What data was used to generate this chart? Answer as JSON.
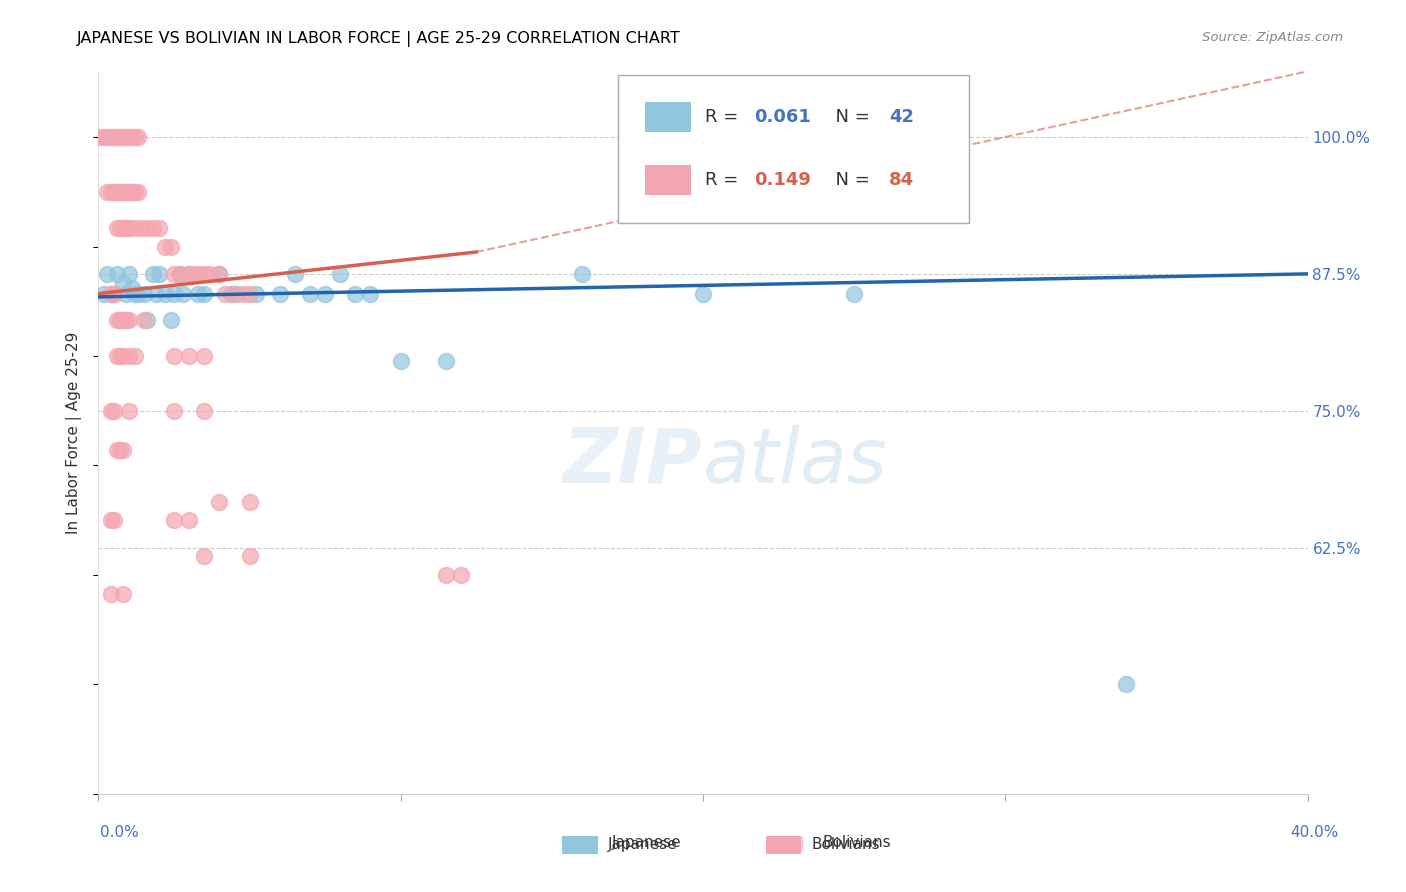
{
  "title": "JAPANESE VS BOLIVIAN IN LABOR FORCE | AGE 25-29 CORRELATION CHART",
  "source": "Source: ZipAtlas.com",
  "ylabel": "In Labor Force | Age 25-29",
  "ytick_labels": [
    "100.0%",
    "87.5%",
    "75.0%",
    "62.5%"
  ],
  "ytick_values": [
    1.0,
    0.875,
    0.75,
    0.625
  ],
  "xlim": [
    0.0,
    0.4
  ],
  "ylim": [
    0.4,
    1.06
  ],
  "japanese_color": "#92C5DE",
  "bolivian_color": "#F4A6B0",
  "japanese_trend_color": "#2166AC",
  "bolivian_trend_color": "#D6604D",
  "japanese_trend": [
    0.0,
    0.854,
    0.4,
    0.875
  ],
  "bolivian_trend_solid": [
    0.0,
    0.857,
    0.125,
    0.895
  ],
  "bolivian_trend_dashed": [
    0.125,
    0.895,
    0.4,
    1.06
  ],
  "japanese_points": [
    [
      0.002,
      0.857
    ],
    [
      0.003,
      0.875
    ],
    [
      0.004,
      0.857
    ],
    [
      0.005,
      0.857
    ],
    [
      0.006,
      0.875
    ],
    [
      0.007,
      0.833
    ],
    [
      0.008,
      0.867
    ],
    [
      0.009,
      0.857
    ],
    [
      0.01,
      0.875
    ],
    [
      0.011,
      0.862
    ],
    [
      0.012,
      0.857
    ],
    [
      0.013,
      0.857
    ],
    [
      0.015,
      0.857
    ],
    [
      0.016,
      0.833
    ],
    [
      0.018,
      0.875
    ],
    [
      0.019,
      0.857
    ],
    [
      0.02,
      0.875
    ],
    [
      0.022,
      0.857
    ],
    [
      0.024,
      0.833
    ],
    [
      0.025,
      0.857
    ],
    [
      0.027,
      0.875
    ],
    [
      0.028,
      0.857
    ],
    [
      0.03,
      0.875
    ],
    [
      0.033,
      0.857
    ],
    [
      0.035,
      0.857
    ],
    [
      0.04,
      0.875
    ],
    [
      0.044,
      0.857
    ],
    [
      0.046,
      0.857
    ],
    [
      0.052,
      0.857
    ],
    [
      0.06,
      0.857
    ],
    [
      0.065,
      0.875
    ],
    [
      0.07,
      0.857
    ],
    [
      0.075,
      0.857
    ],
    [
      0.08,
      0.875
    ],
    [
      0.085,
      0.857
    ],
    [
      0.09,
      0.857
    ],
    [
      0.1,
      0.795
    ],
    [
      0.115,
      0.795
    ],
    [
      0.16,
      0.875
    ],
    [
      0.2,
      0.857
    ],
    [
      0.25,
      0.857
    ],
    [
      0.34,
      0.5
    ]
  ],
  "bolivian_points": [
    [
      0.001,
      1.0
    ],
    [
      0.002,
      1.0
    ],
    [
      0.003,
      1.0
    ],
    [
      0.004,
      1.0
    ],
    [
      0.005,
      1.0
    ],
    [
      0.006,
      1.0
    ],
    [
      0.007,
      1.0
    ],
    [
      0.008,
      1.0
    ],
    [
      0.009,
      1.0
    ],
    [
      0.01,
      1.0
    ],
    [
      0.011,
      1.0
    ],
    [
      0.012,
      1.0
    ],
    [
      0.013,
      1.0
    ],
    [
      0.003,
      0.95
    ],
    [
      0.004,
      0.95
    ],
    [
      0.005,
      0.95
    ],
    [
      0.006,
      0.95
    ],
    [
      0.007,
      0.95
    ],
    [
      0.008,
      0.95
    ],
    [
      0.009,
      0.95
    ],
    [
      0.01,
      0.95
    ],
    [
      0.011,
      0.95
    ],
    [
      0.012,
      0.95
    ],
    [
      0.013,
      0.95
    ],
    [
      0.006,
      0.917
    ],
    [
      0.007,
      0.917
    ],
    [
      0.008,
      0.917
    ],
    [
      0.009,
      0.917
    ],
    [
      0.01,
      0.917
    ],
    [
      0.012,
      0.917
    ],
    [
      0.014,
      0.917
    ],
    [
      0.016,
      0.917
    ],
    [
      0.018,
      0.917
    ],
    [
      0.02,
      0.917
    ],
    [
      0.022,
      0.9
    ],
    [
      0.024,
      0.9
    ],
    [
      0.025,
      0.875
    ],
    [
      0.027,
      0.875
    ],
    [
      0.03,
      0.875
    ],
    [
      0.032,
      0.875
    ],
    [
      0.033,
      0.875
    ],
    [
      0.035,
      0.875
    ],
    [
      0.037,
      0.875
    ],
    [
      0.04,
      0.875
    ],
    [
      0.042,
      0.857
    ],
    [
      0.045,
      0.857
    ],
    [
      0.048,
      0.857
    ],
    [
      0.05,
      0.857
    ],
    [
      0.004,
      0.857
    ],
    [
      0.005,
      0.857
    ],
    [
      0.006,
      0.833
    ],
    [
      0.007,
      0.833
    ],
    [
      0.008,
      0.833
    ],
    [
      0.009,
      0.833
    ],
    [
      0.01,
      0.833
    ],
    [
      0.015,
      0.833
    ],
    [
      0.006,
      0.8
    ],
    [
      0.007,
      0.8
    ],
    [
      0.008,
      0.8
    ],
    [
      0.01,
      0.8
    ],
    [
      0.012,
      0.8
    ],
    [
      0.025,
      0.8
    ],
    [
      0.03,
      0.8
    ],
    [
      0.035,
      0.8
    ],
    [
      0.004,
      0.75
    ],
    [
      0.005,
      0.75
    ],
    [
      0.006,
      0.714
    ],
    [
      0.007,
      0.714
    ],
    [
      0.008,
      0.714
    ],
    [
      0.01,
      0.75
    ],
    [
      0.025,
      0.75
    ],
    [
      0.035,
      0.75
    ],
    [
      0.004,
      0.65
    ],
    [
      0.005,
      0.65
    ],
    [
      0.025,
      0.65
    ],
    [
      0.03,
      0.65
    ],
    [
      0.035,
      0.617
    ],
    [
      0.05,
      0.617
    ],
    [
      0.004,
      0.583
    ],
    [
      0.008,
      0.583
    ],
    [
      0.115,
      0.6
    ],
    [
      0.12,
      0.6
    ],
    [
      0.04,
      0.667
    ],
    [
      0.05,
      0.667
    ]
  ]
}
